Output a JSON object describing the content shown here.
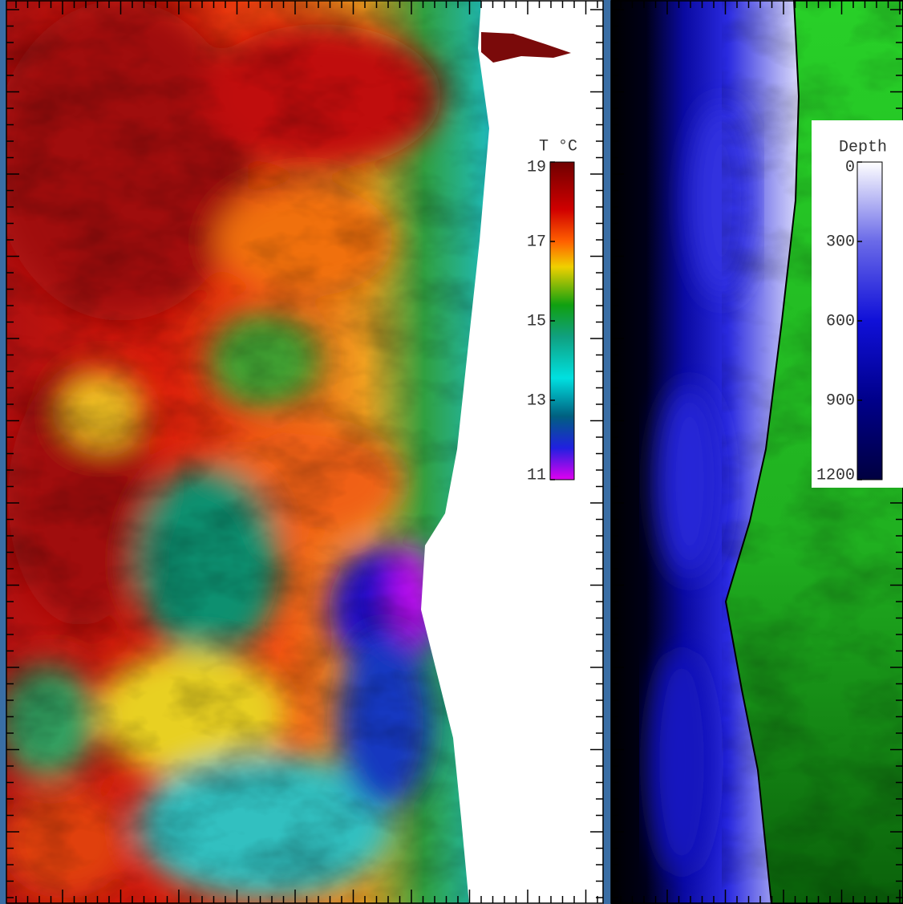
{
  "sst_panel": {
    "legend": {
      "title": "T °C",
      "ticks": [
        19,
        17,
        15,
        13,
        11
      ]
    }
  },
  "depth_panel": {
    "legend": {
      "title": "Depth",
      "ticks": [
        0,
        300,
        600,
        900,
        1200
      ]
    }
  }
}
